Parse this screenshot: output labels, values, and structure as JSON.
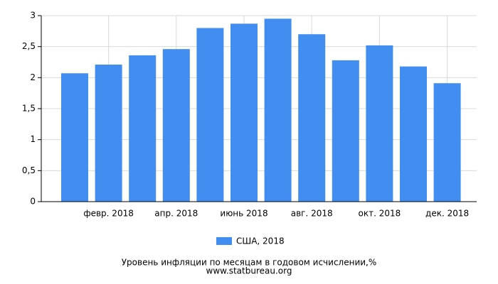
{
  "chart_data": {
    "type": "bar",
    "title": "Уровень инфляции по месяцам в годовом исчислении,%",
    "subtitle": "www.statbureau.org",
    "categories": [
      null,
      "февр. 2018",
      null,
      "апр. 2018",
      null,
      "июнь 2018",
      null,
      "авг. 2018",
      null,
      "окт. 2018",
      null,
      "дек. 2018"
    ],
    "series": [
      {
        "name": "США, 2018",
        "color": "#418ef0",
        "values": [
          2.07,
          2.21,
          2.36,
          2.46,
          2.8,
          2.87,
          2.95,
          2.7,
          2.28,
          2.52,
          2.18,
          1.91
        ]
      }
    ],
    "ylim": [
      0,
      3
    ],
    "yticks": [
      0,
      {
        "value": 0.5,
        "label": "0,5"
      },
      1,
      {
        "value": 1.5,
        "label": "1,5"
      },
      2,
      {
        "value": 2.5,
        "label": "2,5"
      },
      3
    ],
    "grid": true
  }
}
